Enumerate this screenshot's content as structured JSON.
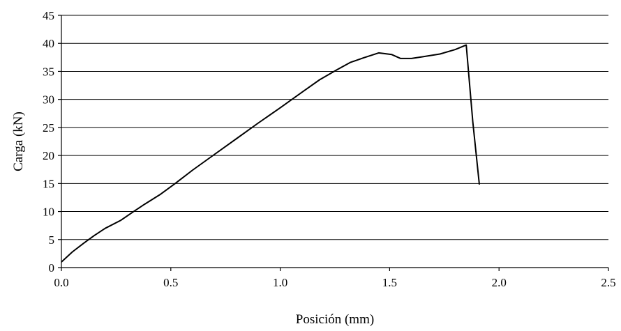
{
  "chart_data": {
    "type": "line",
    "title": "",
    "xlabel": "Posición (mm)",
    "ylabel": "Carga (kN)",
    "xlim": [
      0,
      2.5
    ],
    "ylim": [
      0,
      45
    ],
    "x_ticks": [
      0,
      0.5,
      1.0,
      1.5,
      2.0,
      2.5
    ],
    "x_tick_labels": [
      "0.0",
      "0.5",
      "1.0",
      "1.5",
      "2.0",
      "2.5"
    ],
    "y_ticks": [
      0,
      5,
      10,
      15,
      20,
      25,
      30,
      35,
      40,
      45
    ],
    "y_tick_labels": [
      "0",
      "5",
      "10",
      "15",
      "20",
      "25",
      "30",
      "35",
      "40",
      "45"
    ],
    "grid": "horizontal",
    "legend": "none",
    "line_color": "#000000",
    "series": [
      {
        "x": [
          0.0,
          0.05,
          0.1,
          0.15,
          0.2,
          0.27,
          0.33,
          0.38,
          0.45,
          0.52,
          0.6,
          0.7,
          0.8,
          0.9,
          1.0,
          1.1,
          1.18,
          1.26,
          1.32,
          1.38,
          1.45,
          1.51,
          1.55,
          1.6,
          1.65,
          1.73,
          1.8,
          1.85,
          1.88,
          1.91
        ],
        "y": [
          1.0,
          2.8,
          4.3,
          5.7,
          7.0,
          8.4,
          10.0,
          11.3,
          13.0,
          15.0,
          17.4,
          20.2,
          23.0,
          25.8,
          28.5,
          31.3,
          33.5,
          35.3,
          36.6,
          37.4,
          38.3,
          38.0,
          37.3,
          37.3,
          37.6,
          38.1,
          38.9,
          39.7,
          26.0,
          14.8
        ]
      }
    ]
  }
}
